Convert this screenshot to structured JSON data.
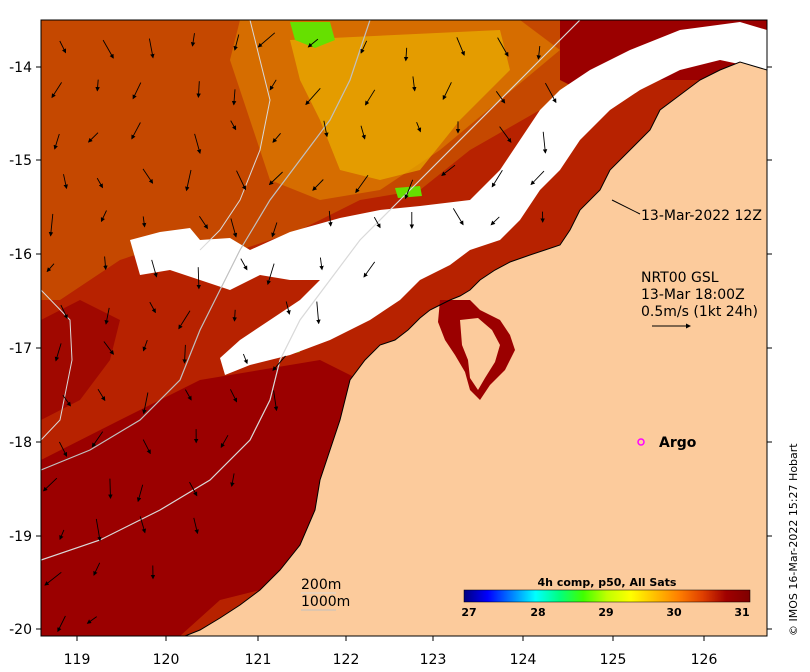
{
  "map": {
    "x_ticks": [
      "119",
      "120",
      "121",
      "122",
      "123",
      "124",
      "125",
      "126"
    ],
    "y_ticks": [
      "-14",
      "-15",
      "-16",
      "-17",
      "-18",
      "-19",
      "-20"
    ],
    "colors": {
      "land": "#fccb9c",
      "cloud": "#ffffff",
      "sst_hot": "#9b0000",
      "sst_warm": "#c43c00",
      "sst_mid": "#e07800",
      "sst_yellow": "#f4c000",
      "sst_green": "#5ae000",
      "contour": "#d9d9d9",
      "argo": "#ff00ff"
    }
  },
  "annotations": {
    "timestamp": "13-Mar-2022 12Z",
    "product_line1": "NRT00 GSL",
    "product_line2": "13-Mar 18:00Z",
    "product_line3": "0.5m/s (1kt 24h)",
    "argo_label": "Argo",
    "isobath1": "200m",
    "isobath2": "1000m"
  },
  "colorbar": {
    "title": "4h comp, p50, All Sats",
    "ticks": [
      "27",
      "28",
      "29",
      "30",
      "31"
    ],
    "stops": [
      "#00007f",
      "#0000ff",
      "#0080ff",
      "#00ffff",
      "#00ff80",
      "#40ff00",
      "#c0ff00",
      "#ffff00",
      "#ffc000",
      "#ff8000",
      "#e04000",
      "#a00000",
      "#7f0000"
    ]
  },
  "credit": "© IMOS 16-Mar-2022 15:27 Hobart"
}
